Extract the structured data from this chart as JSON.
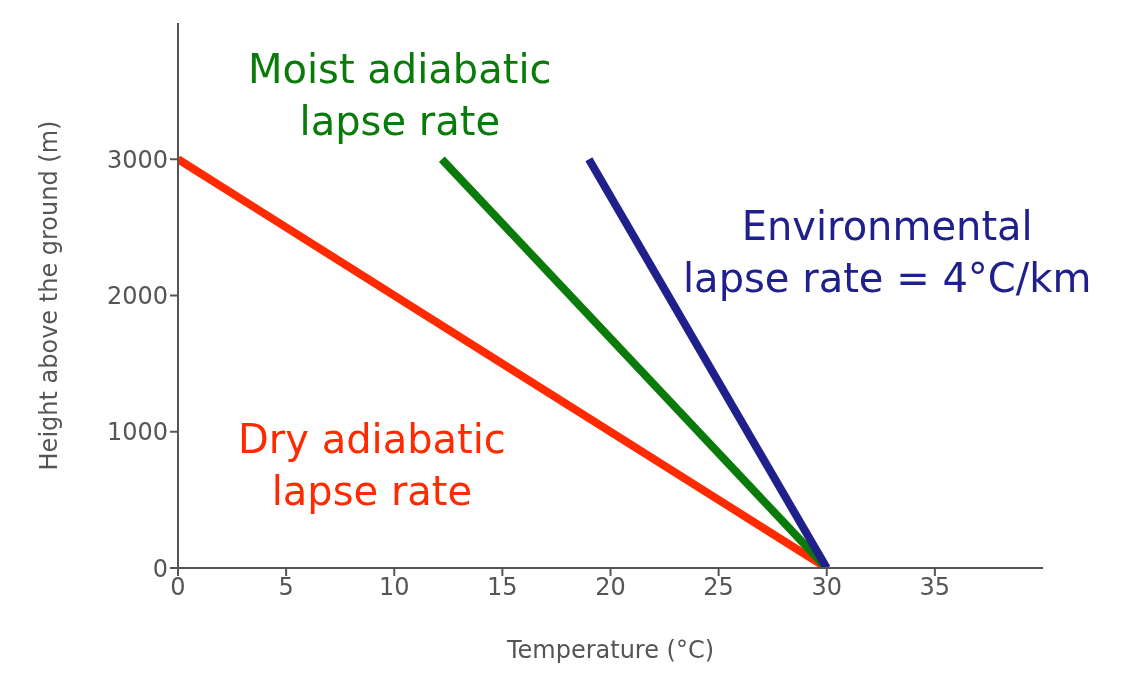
{
  "chart_data": {
    "type": "line",
    "xlabel": "Temperature (°C)",
    "ylabel": "Height above the ground (m)",
    "xlim": [
      0,
      40
    ],
    "ylim": [
      0,
      4000
    ],
    "xticks": [
      0,
      5,
      10,
      15,
      20,
      25,
      30,
      35
    ],
    "yticks": [
      0,
      1000,
      2000,
      3000
    ],
    "grid": false,
    "legend": false,
    "marker": "none",
    "line_style": "solid",
    "series": [
      {
        "name": "Dry adiabatic lapse rate",
        "color": "#ff2a00",
        "x": [
          0,
          30
        ],
        "values": [
          3000,
          0
        ]
      },
      {
        "name": "Moist adiabatic lapse rate",
        "color": "#0a7a0a",
        "x": [
          12.2,
          30
        ],
        "values": [
          3000,
          0
        ]
      },
      {
        "name": "Environmental lapse rate = 4°C/km",
        "color": "#20208c",
        "x": [
          19,
          30
        ],
        "values": [
          3000,
          0
        ]
      }
    ]
  }
}
